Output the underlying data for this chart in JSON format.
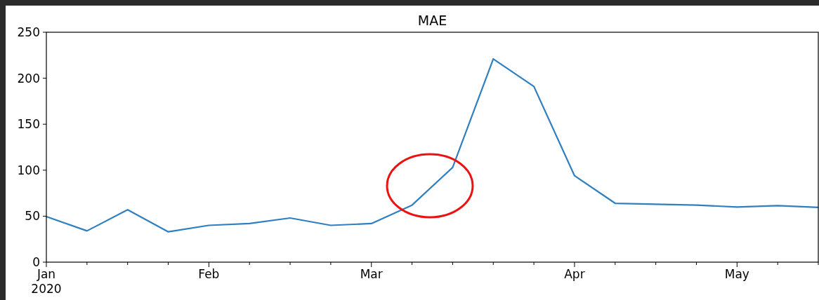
{
  "chart_data": {
    "type": "line",
    "title": "MAE",
    "x": [
      "2020-01-05",
      "2020-01-12",
      "2020-01-19",
      "2020-01-26",
      "2020-02-02",
      "2020-02-09",
      "2020-02-16",
      "2020-02-23",
      "2020-03-01",
      "2020-03-08",
      "2020-03-15",
      "2020-03-22",
      "2020-03-29",
      "2020-04-05",
      "2020-04-12",
      "2020-04-19",
      "2020-04-26",
      "2020-05-03",
      "2020-05-10",
      "2020-05-17"
    ],
    "series": [
      {
        "color": "#2f7fc1",
        "values": [
          49.5,
          34,
          57,
          33,
          40,
          42,
          48,
          40,
          42,
          62,
          103,
          221,
          191,
          94,
          64,
          63,
          62,
          60,
          61.5,
          59.5
        ]
      }
    ],
    "xlim": [
      "2020-01-05",
      "2020-05-17"
    ],
    "xticks": [
      {
        "value": "2020-01-05",
        "label": "Jan\n2020"
      },
      {
        "value": "2020-01-12",
        "label": null
      },
      {
        "value": "2020-01-19",
        "label": null
      },
      {
        "value": "2020-01-26",
        "label": null
      },
      {
        "value": "2020-02-02",
        "label": "Feb"
      },
      {
        "value": "2020-02-09",
        "label": null
      },
      {
        "value": "2020-02-16",
        "label": null
      },
      {
        "value": "2020-02-23",
        "label": null
      },
      {
        "value": "2020-03-01",
        "label": "Mar"
      },
      {
        "value": "2020-03-08",
        "label": null
      },
      {
        "value": "2020-03-15",
        "label": null
      },
      {
        "value": "2020-03-22",
        "label": null
      },
      {
        "value": "2020-03-29",
        "label": null
      },
      {
        "value": "2020-04-05",
        "label": "Apr"
      },
      {
        "value": "2020-04-12",
        "label": null
      },
      {
        "value": "2020-04-19",
        "label": null
      },
      {
        "value": "2020-04-26",
        "label": null
      },
      {
        "value": "2020-05-03",
        "label": "May"
      },
      {
        "value": "2020-05-10",
        "label": null
      },
      {
        "value": "2020-05-17",
        "label": null
      }
    ],
    "ylim": [
      0,
      250
    ],
    "yticks": [
      0,
      50,
      100,
      150,
      200,
      250
    ],
    "grid": false,
    "marker": "none",
    "line_style": "solid"
  }
}
